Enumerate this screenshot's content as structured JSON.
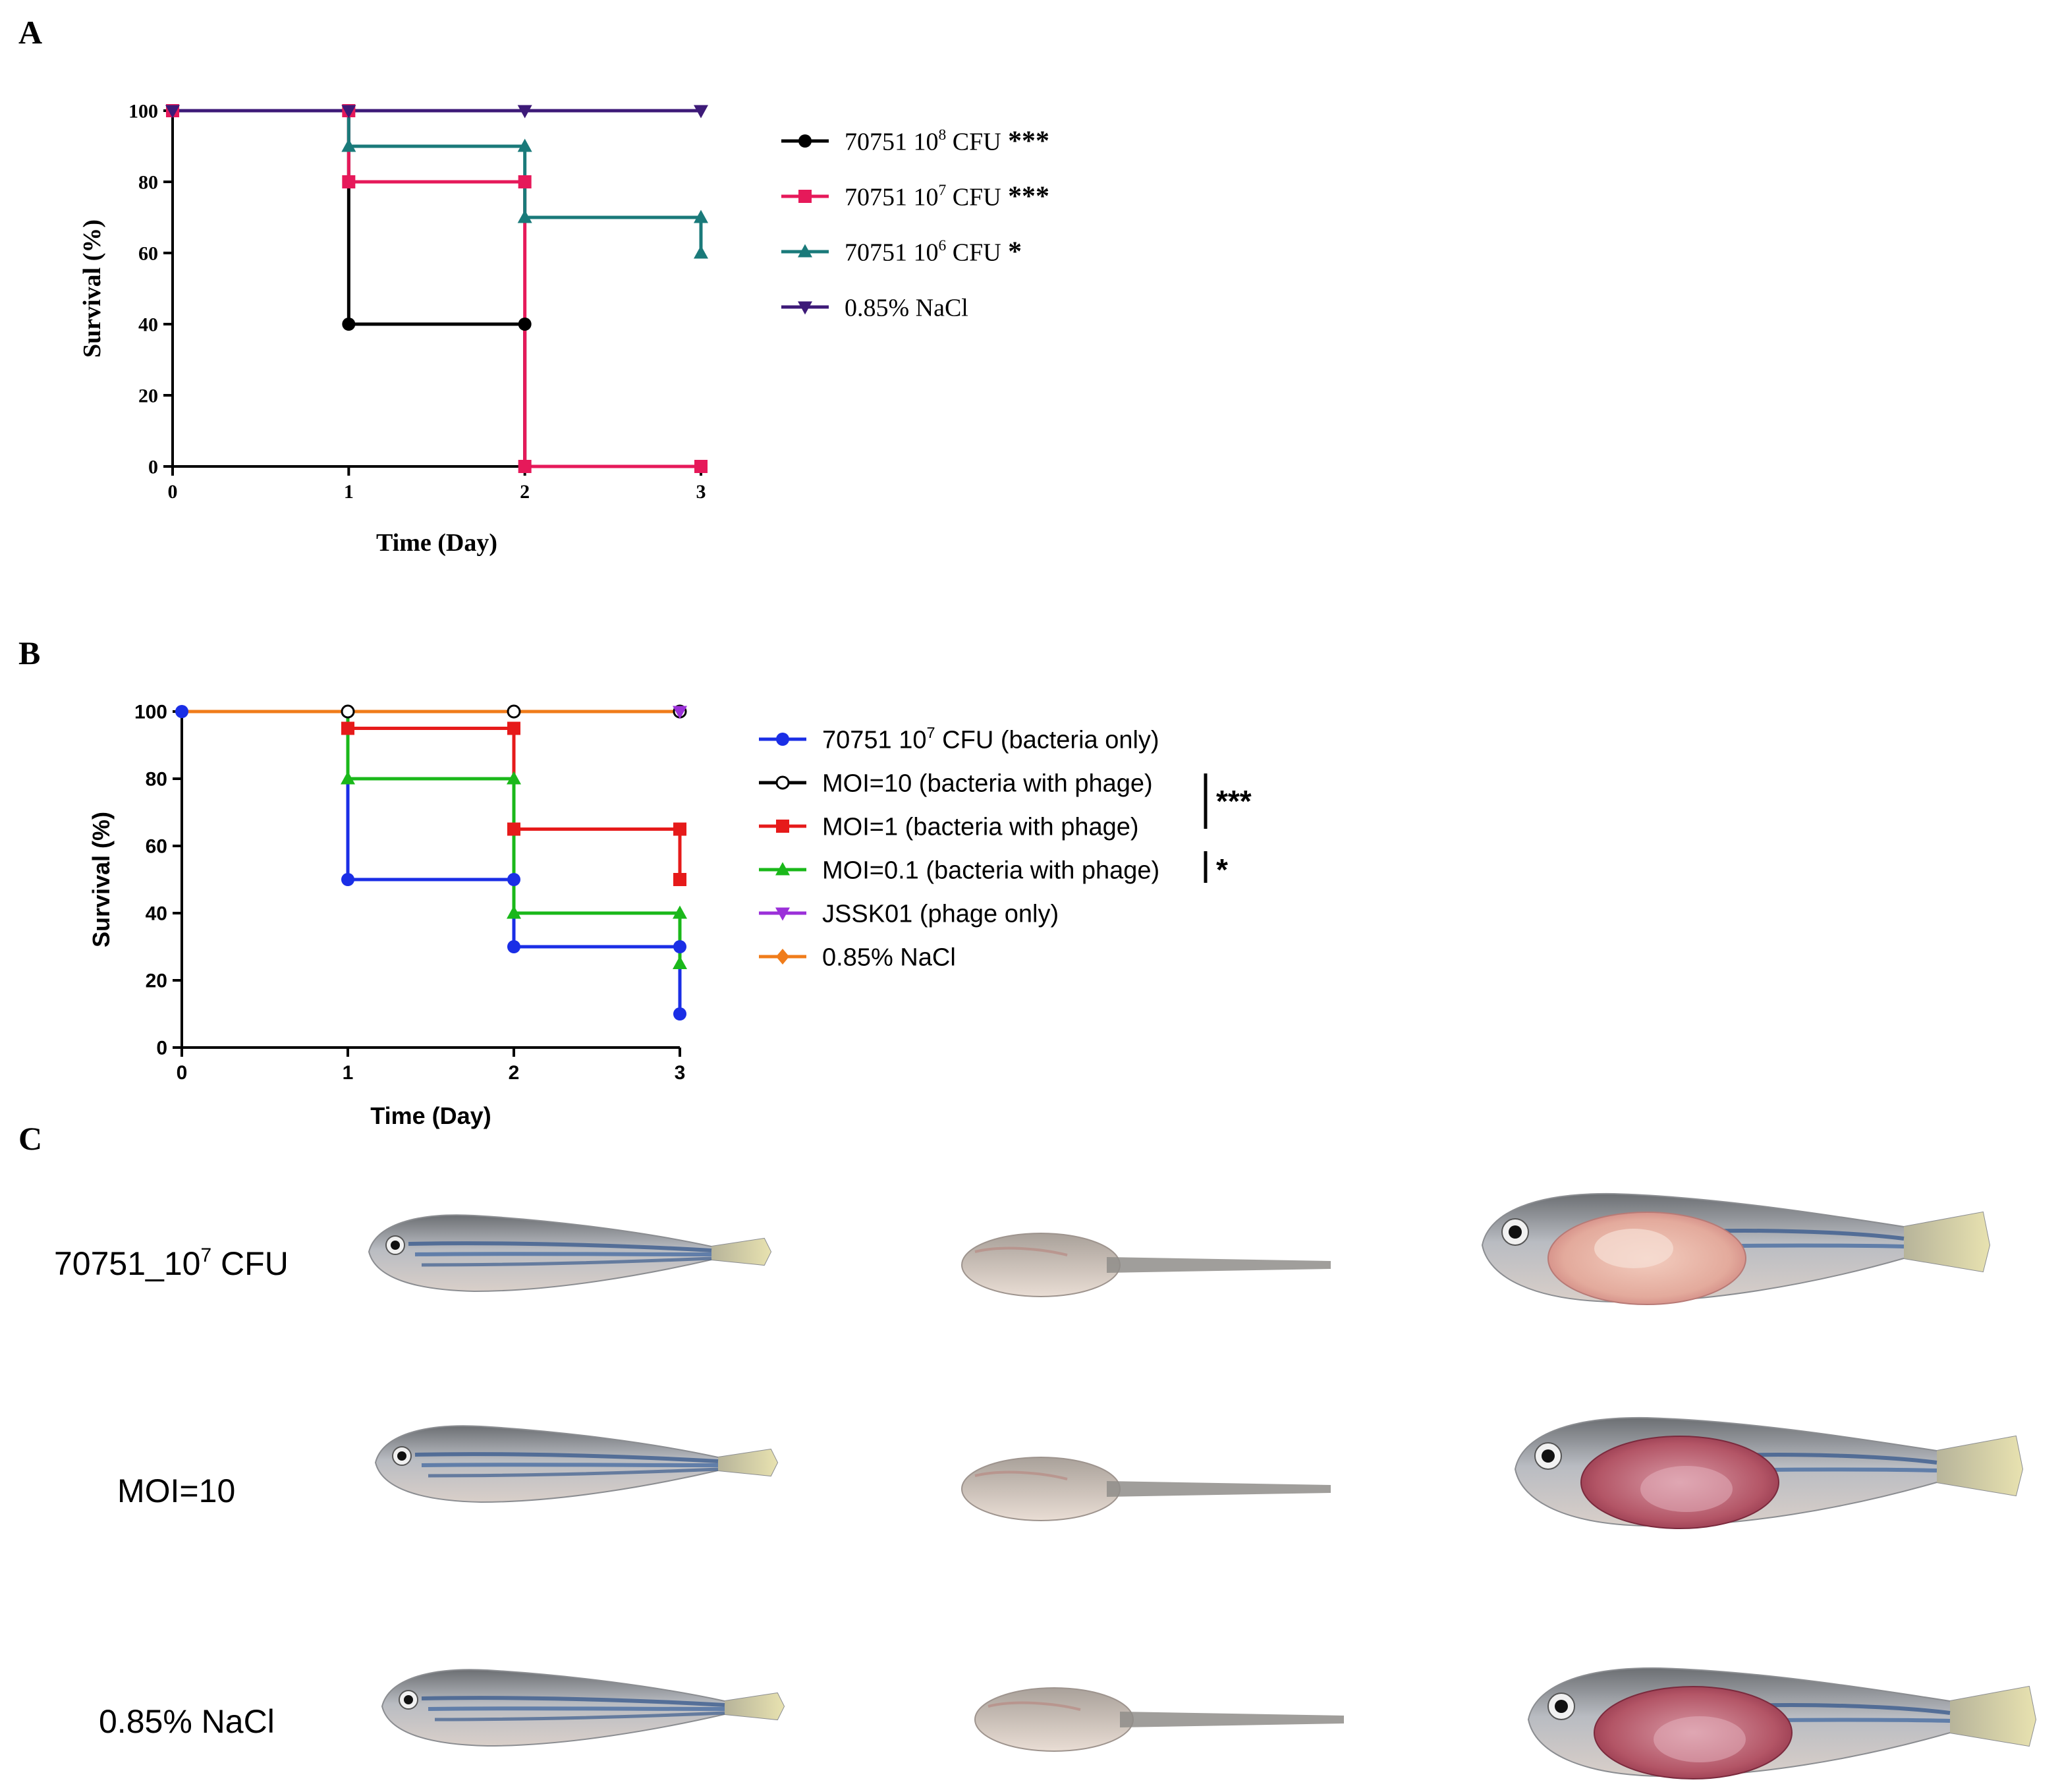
{
  "panels": {
    "a": "A",
    "b": "B",
    "c": "C"
  },
  "chart_data": [
    {
      "panel": "A",
      "type": "line",
      "step": true,
      "xlabel": "Time (Day)",
      "ylabel": "Survival (%)",
      "xlim": [
        0,
        3
      ],
      "ylim": [
        0,
        100
      ],
      "xticks": [
        "0",
        "1",
        "2",
        "3"
      ],
      "yticks": [
        "0",
        "20",
        "40",
        "60",
        "80",
        "100"
      ],
      "legend_position": "right",
      "series": [
        {
          "name": "70751 10⁸ CFU",
          "label_main": "70751 10",
          "label_sup": "8",
          "label_tail": " CFU",
          "significance": "***",
          "color": "#000000",
          "marker": "circle",
          "points": [
            [
              0,
              100
            ],
            [
              1,
              100
            ],
            [
              1,
              40
            ],
            [
              2,
              40
            ],
            [
              2,
              0
            ],
            [
              3,
              0
            ]
          ],
          "marks": [
            [
              0,
              100
            ],
            [
              1,
              40
            ],
            [
              2,
              40
            ],
            [
              2,
              0
            ],
            [
              3,
              0
            ]
          ]
        },
        {
          "name": "70751 10⁷ CFU",
          "label_main": "70751 10",
          "label_sup": "7",
          "label_tail": " CFU",
          "significance": "***",
          "color": "#e6195a",
          "marker": "square",
          "points": [
            [
              0,
              100
            ],
            [
              1,
              100
            ],
            [
              1,
              80
            ],
            [
              2,
              80
            ],
            [
              2,
              0
            ],
            [
              3,
              0
            ]
          ],
          "marks": [
            [
              0,
              100
            ],
            [
              1,
              100
            ],
            [
              1,
              80
            ],
            [
              2,
              80
            ],
            [
              2,
              0
            ],
            [
              3,
              0
            ]
          ]
        },
        {
          "name": "70751 10⁶ CFU",
          "label_main": "70751 10",
          "label_sup": "6",
          "label_tail": " CFU",
          "significance": "*",
          "color": "#1a7a7a",
          "marker": "triangle-up",
          "points": [
            [
              0,
              100
            ],
            [
              1,
              100
            ],
            [
              1,
              90
            ],
            [
              2,
              90
            ],
            [
              2,
              70
            ],
            [
              3,
              70
            ],
            [
              3,
              60
            ]
          ],
          "marks": [
            [
              1,
              90
            ],
            [
              2,
              90
            ],
            [
              2,
              70
            ],
            [
              3,
              70
            ],
            [
              3,
              60
            ]
          ]
        },
        {
          "name": "0.85% NaCl",
          "label_main": "0.85% NaCl",
          "label_sup": "",
          "label_tail": "",
          "significance": "",
          "color": "#3d1a78",
          "marker": "triangle-down",
          "points": [
            [
              0,
              100
            ],
            [
              3,
              100
            ]
          ],
          "marks": [
            [
              0,
              100
            ],
            [
              1,
              100
            ],
            [
              2,
              100
            ],
            [
              3,
              100
            ]
          ]
        }
      ]
    },
    {
      "panel": "B",
      "type": "line",
      "step": true,
      "xlabel": "Time (Day)",
      "ylabel": "Survival (%)",
      "xlim": [
        0,
        3
      ],
      "ylim": [
        0,
        100
      ],
      "xticks": [
        "0",
        "1",
        "2",
        "3"
      ],
      "yticks": [
        "0",
        "20",
        "40",
        "60",
        "80",
        "100"
      ],
      "legend_position": "right",
      "series": [
        {
          "name": "70751 10⁷ CFU (bacteria only)",
          "label_main": "70751 10",
          "label_sup": "7",
          "label_tail": " CFU (bacteria only)",
          "color": "#1a2ee6",
          "marker": "circle",
          "points": [
            [
              0,
              100
            ],
            [
              1,
              100
            ],
            [
              1,
              50
            ],
            [
              2,
              50
            ],
            [
              2,
              30
            ],
            [
              3,
              30
            ],
            [
              3,
              10
            ]
          ],
          "marks": [
            [
              0,
              100
            ],
            [
              1,
              100
            ],
            [
              1,
              50
            ],
            [
              2,
              50
            ],
            [
              2,
              30
            ],
            [
              3,
              30
            ],
            [
              3,
              10
            ]
          ]
        },
        {
          "name": "MOI=10 (bacteria with phage)",
          "label_main": "MOI=10 (bacteria with phage)",
          "label_sup": "",
          "label_tail": "",
          "color": "#000000",
          "marker": "circle-open",
          "points": [
            [
              0,
              100
            ],
            [
              3,
              100
            ]
          ],
          "marks": [
            [
              1,
              100
            ],
            [
              2,
              100
            ],
            [
              3,
              100
            ]
          ]
        },
        {
          "name": "MOI=1 (bacteria with phage)",
          "label_main": "MOI=1 (bacteria with phage)",
          "label_sup": "",
          "label_tail": "",
          "color": "#e61a1a",
          "marker": "square",
          "points": [
            [
              0,
              100
            ],
            [
              1,
              100
            ],
            [
              1,
              95
            ],
            [
              2,
              95
            ],
            [
              2,
              65
            ],
            [
              3,
              65
            ],
            [
              3,
              50
            ]
          ],
          "marks": [
            [
              1,
              95
            ],
            [
              2,
              95
            ],
            [
              2,
              65
            ],
            [
              3,
              65
            ],
            [
              3,
              50
            ]
          ]
        },
        {
          "name": "MOI=0.1 (bacteria with phage)",
          "label_main": "MOI=0.1 (bacteria with phage)",
          "label_sup": "",
          "label_tail": "",
          "color": "#1ab81a",
          "marker": "triangle-up",
          "points": [
            [
              0,
              100
            ],
            [
              1,
              100
            ],
            [
              1,
              80
            ],
            [
              2,
              80
            ],
            [
              2,
              40
            ],
            [
              3,
              40
            ],
            [
              3,
              25
            ]
          ],
          "marks": [
            [
              1,
              80
            ],
            [
              2,
              80
            ],
            [
              2,
              40
            ],
            [
              3,
              40
            ],
            [
              3,
              25
            ]
          ]
        },
        {
          "name": "JSSK01 (phage only)",
          "label_main": "JSSK01 (phage only)",
          "label_sup": "",
          "label_tail": "",
          "color": "#9b30d9",
          "marker": "triangle-down",
          "points": [
            [
              0,
              100
            ],
            [
              3,
              100
            ]
          ],
          "marks": [
            [
              3,
              100
            ]
          ]
        },
        {
          "name": "0.85% NaCl",
          "label_main": "0.85% NaCl",
          "label_sup": "",
          "label_tail": "",
          "color": "#f07c1a",
          "marker": "diamond",
          "points": [
            [
              0,
              100
            ],
            [
              3,
              100
            ]
          ],
          "marks": []
        }
      ],
      "significance_brackets": [
        {
          "label": "***",
          "series": [
            "MOI=10 (bacteria with phage)",
            "MOI=1 (bacteria with phage)"
          ]
        },
        {
          "label": "*",
          "series": [
            "MOI=0.1 (bacteria with phage)"
          ]
        }
      ]
    }
  ],
  "photo_panel": {
    "rows": [
      {
        "label_main": "70751_10",
        "label_sup": "7",
        "label_tail": " CFU"
      },
      {
        "label_main": "MOI=10",
        "label_sup": "",
        "label_tail": ""
      },
      {
        "label_main": "0.85% NaCl",
        "label_sup": "",
        "label_tail": ""
      }
    ]
  }
}
